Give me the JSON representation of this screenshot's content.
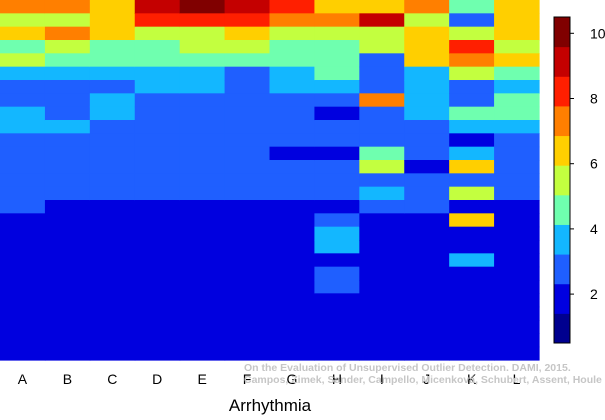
{
  "chart_data": {
    "type": "heatmap",
    "xlabel": "Arrhythmia",
    "ylabel": "",
    "categories": [
      "A",
      "B",
      "C",
      "D",
      "E",
      "F",
      "G",
      "H",
      "I",
      "J",
      "K",
      "L"
    ],
    "n_rows": 27,
    "colorbar": {
      "vmin": 0.5,
      "vmax": 10.5,
      "ticks": [
        2,
        4,
        6,
        8,
        10
      ],
      "colormap": [
        "#00008f",
        "#0000df",
        "#1f5fff",
        "#13b7ff",
        "#6fffaf",
        "#c3ff3f",
        "#ffcf00",
        "#ff7f00",
        "#ff1f00",
        "#c40000",
        "#800000"
      ]
    },
    "grid": false,
    "watermark": [
      "On the Evaluation of Unsupervised Outlier Detection. DAMI, 2015.",
      "Campos, Zimek, Sander, Campello, Micenková, Schubert, Assent, Houle"
    ],
    "columns": [
      [
        7,
        5,
        6,
        4,
        5,
        3,
        2,
        2,
        3,
        3,
        2,
        2,
        2,
        2,
        2,
        2,
        1,
        1,
        1,
        1,
        1,
        1,
        1,
        1,
        1,
        1,
        1
      ],
      [
        7,
        5,
        7,
        5,
        4,
        3,
        2,
        2,
        2,
        3,
        2,
        2,
        2,
        2,
        2,
        1,
        1,
        1,
        1,
        1,
        1,
        1,
        1,
        1,
        1,
        1,
        1
      ],
      [
        6,
        6,
        6,
        4,
        4,
        3,
        2,
        3,
        3,
        2,
        2,
        2,
        2,
        2,
        2,
        1,
        1,
        1,
        1,
        1,
        1,
        1,
        1,
        1,
        1,
        1,
        1
      ],
      [
        9,
        8,
        5,
        4,
        4,
        3,
        3,
        2,
        2,
        2,
        2,
        2,
        2,
        2,
        2,
        1,
        1,
        1,
        1,
        1,
        1,
        1,
        1,
        1,
        1,
        1,
        1
      ],
      [
        10,
        8,
        5,
        5,
        4,
        3,
        3,
        2,
        2,
        2,
        2,
        2,
        2,
        2,
        2,
        1,
        1,
        1,
        1,
        1,
        1,
        1,
        1,
        1,
        1,
        1,
        1
      ],
      [
        9,
        8,
        6,
        5,
        4,
        2,
        2,
        2,
        2,
        2,
        2,
        2,
        2,
        2,
        2,
        1,
        1,
        1,
        1,
        1,
        1,
        1,
        1,
        1,
        1,
        1,
        1
      ],
      [
        8,
        7,
        5,
        4,
        4,
        3,
        3,
        2,
        2,
        2,
        2,
        1,
        2,
        2,
        2,
        1,
        1,
        1,
        1,
        1,
        1,
        1,
        1,
        1,
        1,
        1,
        1
      ],
      [
        6,
        7,
        5,
        4,
        4,
        4,
        3,
        2,
        1,
        2,
        2,
        1,
        2,
        2,
        2,
        1,
        2,
        3,
        3,
        1,
        2,
        2,
        1,
        1,
        1,
        1,
        1
      ],
      [
        6,
        9,
        5,
        5,
        2,
        2,
        2,
        7,
        2,
        2,
        2,
        4,
        5,
        2,
        3,
        2,
        1,
        1,
        1,
        1,
        1,
        1,
        1,
        1,
        1,
        1,
        1
      ],
      [
        7,
        5,
        6,
        6,
        6,
        3,
        3,
        3,
        3,
        2,
        2,
        2,
        1,
        2,
        2,
        2,
        1,
        1,
        1,
        1,
        1,
        1,
        1,
        1,
        1,
        1,
        1
      ],
      [
        4,
        2,
        5,
        8,
        7,
        5,
        2,
        2,
        4,
        3,
        1,
        3,
        6,
        2,
        5,
        1,
        6,
        1,
        1,
        3,
        1,
        1,
        1,
        1,
        1,
        1,
        1
      ],
      [
        6,
        6,
        6,
        5,
        6,
        4,
        3,
        4,
        4,
        3,
        2,
        2,
        2,
        2,
        2,
        1,
        1,
        1,
        1,
        1,
        1,
        1,
        1,
        1,
        1,
        1,
        1
      ]
    ]
  }
}
